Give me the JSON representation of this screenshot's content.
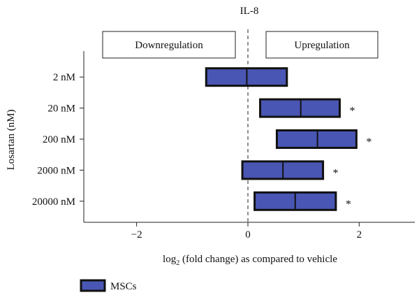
{
  "chart_data": {
    "type": "floating-bar",
    "title": "IL-8",
    "ylabel": "Losartan (nM)",
    "xlabel": {
      "prefix": "log",
      "subscript": "2",
      "suffix": " (fold change) as compared to vehicle"
    },
    "xlim": [
      -2.95,
      3.0
    ],
    "xticks": [
      -2,
      0,
      2
    ],
    "xtick_labels": [
      "−2",
      "0",
      "2"
    ],
    "categories": [
      "2 nM",
      "20 nM",
      "200 nM",
      "2000 nM",
      "20000 nM"
    ],
    "series": [
      {
        "name": "MSCs",
        "color": "#4a56b4",
        "low": [
          -0.75,
          0.22,
          0.52,
          -0.1,
          0.12
        ],
        "median": [
          -0.02,
          0.95,
          1.25,
          0.63,
          0.85
        ],
        "high": [
          0.7,
          1.65,
          1.95,
          1.35,
          1.58
        ]
      }
    ],
    "significance": [
      "",
      "*",
      "*",
      "*",
      "*"
    ],
    "region_labels": {
      "left": "Downregulation",
      "right": "Upregulation"
    },
    "reference_line": 0,
    "legend": "bottom-left"
  }
}
